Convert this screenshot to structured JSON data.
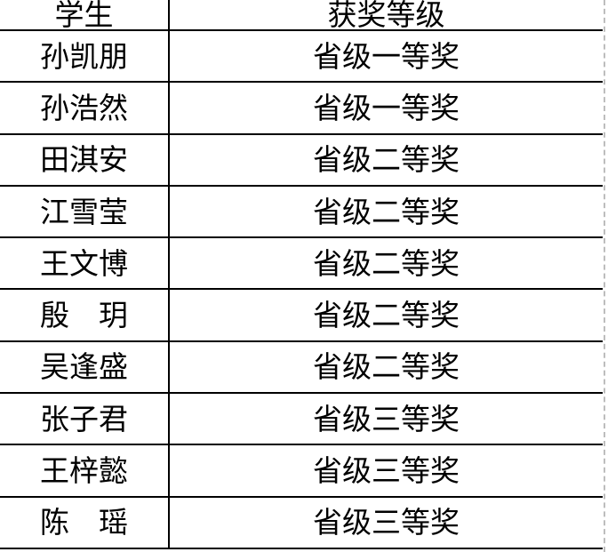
{
  "table": {
    "columns": [
      {
        "key": "student",
        "label": "学生"
      },
      {
        "key": "award",
        "label": "获奖等级"
      }
    ],
    "rows": [
      {
        "student": "孙凯朋",
        "award": "省级一等奖"
      },
      {
        "student": "孙浩然",
        "award": "省级一等奖"
      },
      {
        "student": "田淇安",
        "award": "省级二等奖"
      },
      {
        "student": "江雪莹",
        "award": "省级二等奖"
      },
      {
        "student": "王文博",
        "award": "省级二等奖"
      },
      {
        "student": "殷　玥",
        "award": "省级二等奖"
      },
      {
        "student": "吴逢盛",
        "award": "省级二等奖"
      },
      {
        "student": "张子君",
        "award": "省级三等奖"
      },
      {
        "student": "王梓懿",
        "award": "省级三等奖"
      },
      {
        "student": "陈　瑶",
        "award": "省级三等奖"
      }
    ],
    "colors": {
      "border": "#000000",
      "text": "#000000",
      "background": "#ffffff",
      "page_edge_dash": "#bdbdbd"
    }
  }
}
